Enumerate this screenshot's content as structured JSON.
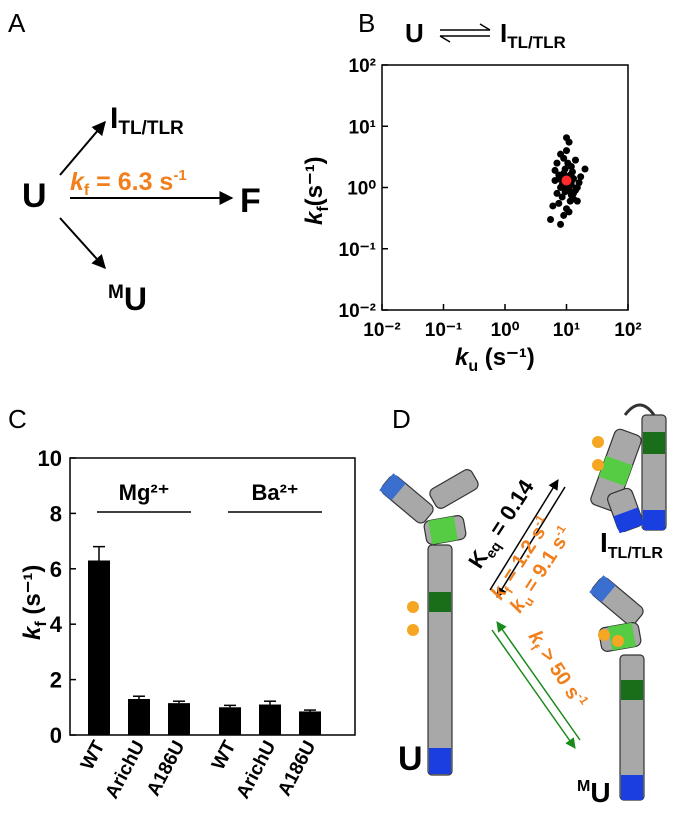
{
  "panel_a": {
    "panel": "A",
    "source": "U",
    "top": "I",
    "top_subscript": "TL/TLR",
    "rate_symbol": "k",
    "rate_subscript": "f",
    "rate_text": " = 6.3 s",
    "rate_exponent": "-1",
    "product": "F",
    "bottom_prefix": "M",
    "bottom": "U"
  },
  "chart_data": [
    {
      "type": "scatter",
      "panel": "B",
      "title": {
        "left": "U",
        "right": "I",
        "right_subscript": "TL/TLR"
      },
      "xlabel": {
        "symbol": "k",
        "subscript": "u",
        "unit": " (s⁻¹)"
      },
      "ylabel": {
        "symbol": "k",
        "subscript": "f",
        "unit": "(s⁻¹)"
      },
      "log_scale": true,
      "xlim": [
        0.01,
        100
      ],
      "ylim": [
        0.01,
        100
      ],
      "xticks": [
        {
          "value": 0.01,
          "label": "10⁻²"
        },
        {
          "value": 0.1,
          "label": "10⁻¹"
        },
        {
          "value": 1,
          "label": "10⁰"
        },
        {
          "value": 10,
          "label": "10¹"
        },
        {
          "value": 100,
          "label": "10²"
        }
      ],
      "yticks": [
        {
          "value": 0.01,
          "label": "10⁻²"
        },
        {
          "value": 0.1,
          "label": "10⁻¹"
        },
        {
          "value": 1,
          "label": "10⁰"
        },
        {
          "value": 10,
          "label": "10¹"
        },
        {
          "value": 100,
          "label": "10²"
        }
      ],
      "series": [
        {
          "color": "#000000",
          "x": [
            8,
            9,
            10,
            11,
            12,
            7,
            6.5,
            13,
            15,
            9.5,
            10.5,
            8.5,
            11.5,
            12.5,
            7.5,
            14,
            16,
            9,
            10,
            11,
            6,
            5.5,
            8,
            13,
            12,
            10,
            9,
            7,
            17,
            20,
            8.5,
            11,
            10,
            12,
            9,
            14,
            7.5,
            10.5,
            11.5,
            8,
            13,
            9.5,
            6.5,
            10,
            12,
            9,
            11,
            15,
            8,
            10
          ],
          "values": [
            1.0,
            1.2,
            1.5,
            0.9,
            1.1,
            0.8,
            1.3,
            1.4,
            1.0,
            2.0,
            2.5,
            0.7,
            0.6,
            1.8,
            1.6,
            0.9,
            1.2,
            3.0,
            4.0,
            5.5,
            0.5,
            0.3,
            0.25,
            0.8,
            2.2,
            0.45,
            0.35,
            2.5,
            1.5,
            2.0,
            1.1,
            1.3,
            0.95,
            0.75,
            1.7,
            2.8,
            0.55,
            1.05,
            1.6,
            3.5,
            0.65,
            0.85,
            1.9,
            6.5,
            1.25,
            1.45,
            0.4,
            0.6,
            1.35,
            1.15
          ]
        },
        {
          "color": "#ff2a2a",
          "x": [
            10
          ],
          "values": [
            1.3
          ]
        }
      ]
    },
    {
      "type": "bar",
      "panel": "C",
      "ylabel": {
        "symbol": "k",
        "subscript": "f",
        "unit": " (s⁻¹)"
      },
      "group_labels": [
        "Mg²⁺",
        "Ba²⁺"
      ],
      "categories": [
        "WT",
        "ArichU",
        "A186U",
        "WT",
        "ArichU",
        "A186U"
      ],
      "values": [
        6.3,
        1.3,
        1.15,
        1.0,
        1.1,
        0.85
      ],
      "errors": [
        0.5,
        0.1,
        0.07,
        0.07,
        0.12,
        0.05
      ],
      "color": "#000000",
      "ylim": [
        0,
        10
      ],
      "yticks": [
        0,
        2,
        4,
        6,
        8,
        10
      ]
    }
  ],
  "panel_d": {
    "panel": "D",
    "keq_symbol": "K",
    "keq_subscript": "eq",
    "keq_text": " = 0.14",
    "kf_symbol": "k",
    "kf_subscript": "f",
    "kf_text": " = 1.2 s",
    "kf_exponent": "-1",
    "ku_symbol": "k",
    "ku_subscript": "u",
    "ku_text": " = 9.1 s",
    "ku_exponent": "-1",
    "kf2_symbol": "k",
    "kf2_subscript": "f",
    "kf2_text": " > 50 s",
    "kf2_exponent": "-1",
    "u_label": "U",
    "i_label": "I",
    "i_subscript": "TL/TLR",
    "mu_prefix": "M",
    "mu_label": "U"
  }
}
